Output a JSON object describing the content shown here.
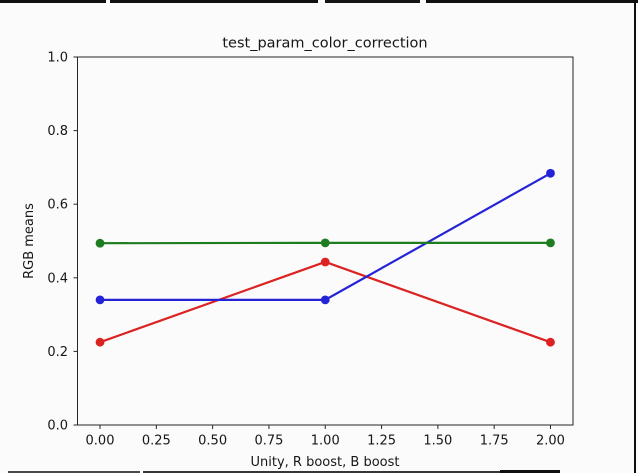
{
  "chart_data": {
    "type": "line",
    "title": "test_param_color_correction",
    "xlabel": "Unity, R boost, B boost",
    "ylabel": "RGB means",
    "x": [
      0,
      1,
      2
    ],
    "series": [
      {
        "name": "red",
        "color": "#dc2323",
        "values": [
          0.225,
          0.443,
          0.225
        ]
      },
      {
        "name": "blue",
        "color": "#2424d6",
        "values": [
          0.34,
          0.34,
          0.684
        ]
      },
      {
        "name": "green",
        "color": "#1e7d1e",
        "values": [
          0.494,
          0.495,
          0.495
        ]
      }
    ],
    "xlim": [
      -0.1,
      2.1
    ],
    "ylim": [
      0,
      1
    ],
    "xticks": {
      "values": [
        0,
        0.25,
        0.5,
        0.75,
        1.0,
        1.25,
        1.5,
        1.75,
        2.0
      ],
      "labels": [
        "0.00",
        "0.25",
        "0.50",
        "0.75",
        "1.00",
        "1.25",
        "1.50",
        "1.75",
        "2.00"
      ]
    },
    "yticks": {
      "values": [
        0,
        0.2,
        0.4,
        0.6,
        0.8,
        1.0
      ],
      "labels": [
        "0.0",
        "0.2",
        "0.4",
        "0.6",
        "0.8",
        "1.0"
      ]
    },
    "grid": false,
    "legend": null,
    "marker": "circle",
    "line_width": 2.2,
    "marker_radius": 4.4,
    "axis_color": "#262626"
  }
}
